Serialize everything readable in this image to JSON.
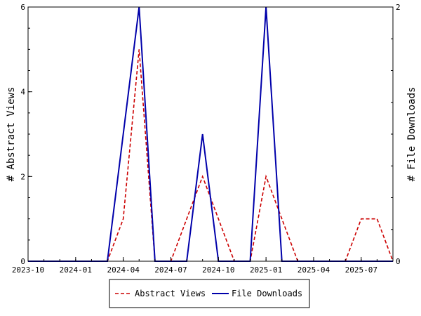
{
  "chart_data": {
    "type": "line",
    "x": [
      "2023-10",
      "2023-11",
      "2023-12",
      "2024-01",
      "2024-02",
      "2024-03",
      "2024-04",
      "2024-05",
      "2024-06",
      "2024-07",
      "2024-08",
      "2024-09",
      "2024-10",
      "2024-11",
      "2024-12",
      "2025-01",
      "2025-02",
      "2025-03",
      "2025-04",
      "2025-05",
      "2025-06",
      "2025-07",
      "2025-08",
      "2025-09"
    ],
    "x_ticks": [
      "2023-10",
      "2024-01",
      "2024-04",
      "2024-07",
      "2024-10",
      "2025-01",
      "2025-04",
      "2025-07"
    ],
    "series": [
      {
        "name": "Abstract Views",
        "axis": "left",
        "color": "#cc0000",
        "dash": "dashed",
        "values": [
          0,
          0,
          0,
          0,
          0,
          0,
          1,
          5,
          0,
          0,
          1,
          2,
          1,
          0,
          0,
          2,
          1,
          0,
          0,
          0,
          0,
          1,
          1,
          0
        ]
      },
      {
        "name": "File Downloads",
        "axis": "right",
        "color": "#0000aa",
        "dash": "solid",
        "values": [
          0,
          0,
          0,
          0,
          0,
          0,
          1,
          2,
          0,
          0,
          0,
          1,
          0,
          0,
          0,
          2,
          0,
          0,
          0,
          0,
          0,
          0,
          0,
          0
        ]
      }
    ],
    "ylabel": "# Abstract Views",
    "y2label": "# File Downloads",
    "ylim": [
      0,
      6
    ],
    "y2lim": [
      0,
      2
    ],
    "y_ticks": [
      0,
      2,
      4,
      6
    ],
    "y2_ticks": [
      0,
      2
    ],
    "grid": false,
    "legend_position": "bottom"
  }
}
